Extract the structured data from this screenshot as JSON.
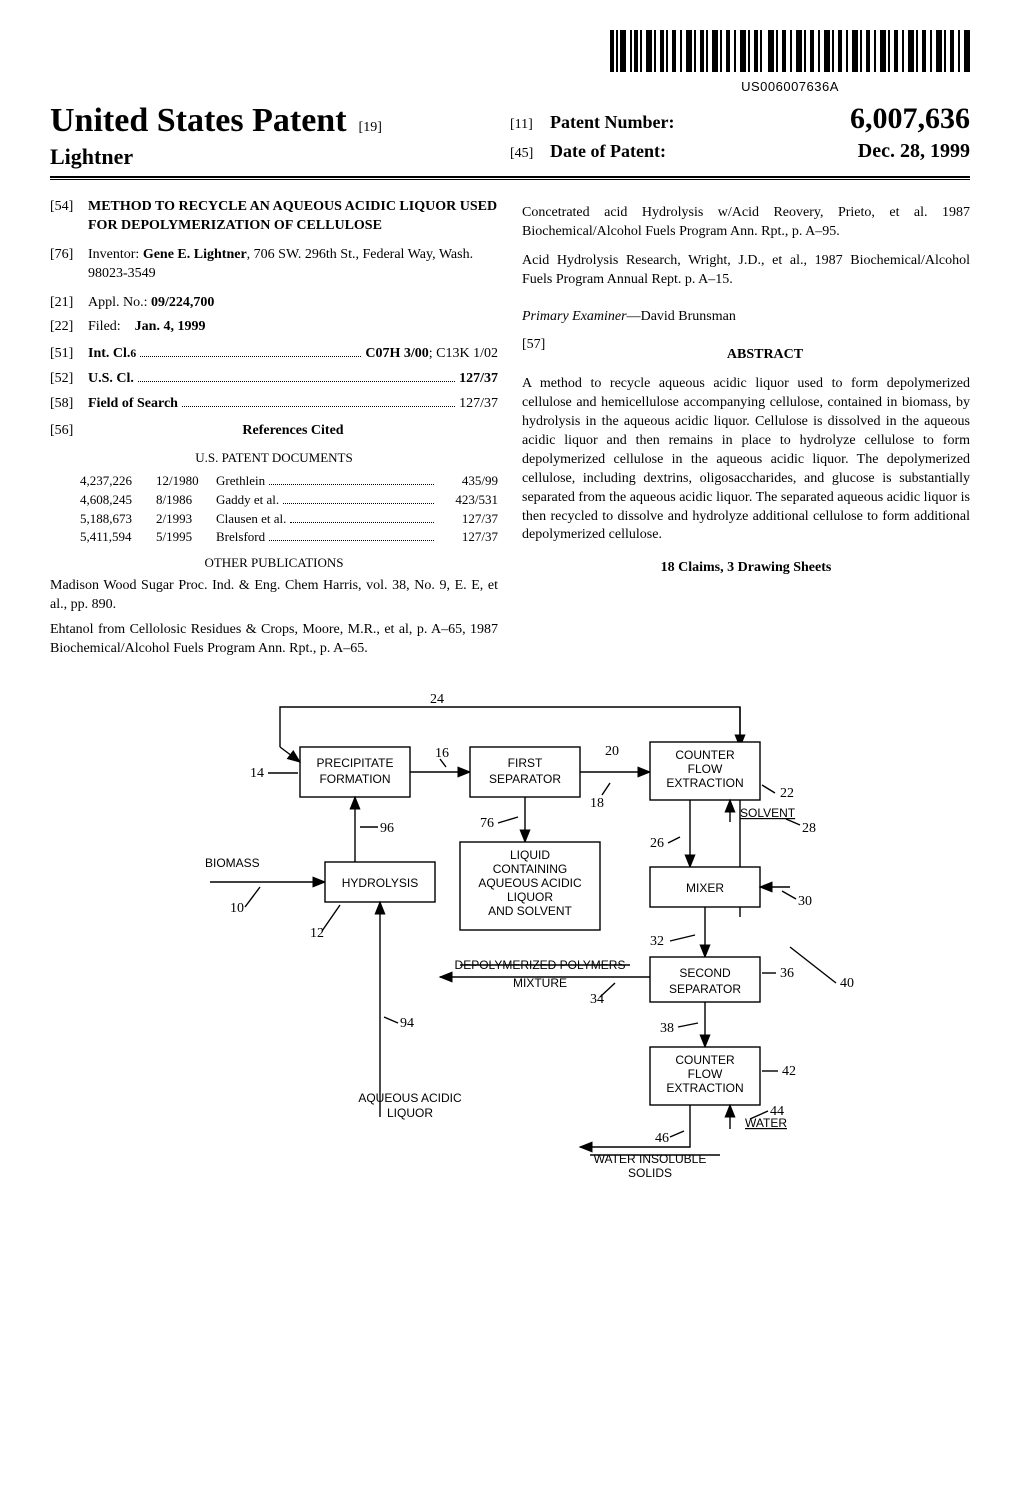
{
  "barcode_number": "US006007636A",
  "header": {
    "usp_title": "United States Patent",
    "usp_code": "[19]",
    "inventor_surname": "Lightner",
    "pn_code": "[11]",
    "pn_label": "Patent Number:",
    "pn_value": "6,007,636",
    "dp_code": "[45]",
    "dp_label": "Date of Patent:",
    "dp_value": "Dec. 28, 1999"
  },
  "fields": {
    "f54_code": "[54]",
    "f54_title": "METHOD TO RECYCLE AN AQUEOUS ACIDIC LIQUOR USED FOR DEPOLYMERIZATION OF CELLULOSE",
    "f76_code": "[76]",
    "f76_label": "Inventor:",
    "f76_value": "Gene E. Lightner, 706 SW. 296th St., Federal Way, Wash. 98023-3549",
    "f21_code": "[21]",
    "f21_label": "Appl. No.:",
    "f21_value": "09/224,700",
    "f22_code": "[22]",
    "f22_label": "Filed:",
    "f22_value": "Jan. 4, 1999",
    "f51_code": "[51]",
    "f51_label": "Int. Cl.",
    "f51_sup": "6",
    "f51_value": "C07H 3/00; C13K 1/02",
    "f52_code": "[52]",
    "f52_label": "U.S. Cl.",
    "f52_value": "127/37",
    "f58_code": "[58]",
    "f58_label": "Field of Search",
    "f58_value": "127/37",
    "f56_code": "[56]",
    "f56_label": "References Cited",
    "uspd_head": "U.S. PATENT DOCUMENTS",
    "refs": [
      {
        "num": "4,237,226",
        "date": "12/1980",
        "name": "Grethlein",
        "cls": "435/99"
      },
      {
        "num": "4,608,245",
        "date": "8/1986",
        "name": "Gaddy et al.",
        "cls": "423/531"
      },
      {
        "num": "5,188,673",
        "date": "2/1993",
        "name": "Clausen et al.",
        "cls": "127/37"
      },
      {
        "num": "5,411,594",
        "date": "5/1995",
        "name": "Brelsford",
        "cls": "127/37"
      }
    ],
    "otherpub_head": "OTHER PUBLICATIONS",
    "otherpub1": "Madison Wood Sugar Proc. Ind. & Eng. Chem Harris, vol. 38, No. 9, E. E, et al., pp. 890.",
    "otherpub2": "Ehtanol from Cellolosic Residues & Crops, Moore, M.R., et al, p. A–65, 1987 Biochemical/Alcohol Fuels Program Ann. Rpt., p. A–65."
  },
  "rightcol": {
    "otherpub3": "Concetrated acid Hydrolysis w/Acid Reovery, Prieto, et al. 1987 Biochemical/Alcohol Fuels Program Ann. Rpt., p. A–95.",
    "otherpub4": "Acid Hydrolysis Research, Wright, J.D., et al., 1987 Biochemical/Alcohol Fuels Program Annual Rept. p. A–15.",
    "examiner_label": "Primary Examiner",
    "examiner_value": "—David Brunsman",
    "f57_code": "[57]",
    "abstract_head": "ABSTRACT",
    "abstract_body": "A method to recycle aqueous acidic liquor used to form depolymerized cellulose and hemicellulose accompanying cellulose, contained in biomass, by hydrolysis in the aqueous acidic liquor. Cellulose is dissolved in the aqueous acidic liquor and then remains in place to hydrolyze cellulose to form depolymerized cellulose in the aqueous acidic liquor. The depolymerized cellulose, including dextrins, oligosaccharides, and glucose is substantially separated from the aqueous acidic liquor. The separated aqueous acidic liquor is then recycled to dissolve and hydrolyze additional cellulose to form additional depolymerized cellulose.",
    "claims_line": "18 Claims, 3 Drawing Sheets"
  },
  "diagram": {
    "nodes": {
      "precipitate": "PRECIPITATE\nFORMATION",
      "first_sep": "FIRST\nSEPARATOR",
      "cfe1": "COUNTER\nFLOW\nEXTRACTION",
      "hydrolysis": "HYDROLYSIS",
      "liquid_box": "LIQUID\nCONTAINING\nAQUEOUS ACIDIC\nLIQUOR\nAND SOLVENT",
      "mixer": "MIXER",
      "second_sep": "SECOND\nSEPARATOR",
      "cfe2": "COUNTER\nFLOW\nEXTRACTION"
    },
    "labels": {
      "biomass": "BIOMASS",
      "solvent": "SOLVENT",
      "water": "WATER",
      "depoly": "DEPOLYMERIZED  POLYMERS\nMIXTURE",
      "aal": "AQUEOUS  ACIDIC\nLIQUOR",
      "wis": "WATER INSOLUBLE\nSOLIDS"
    },
    "nums": {
      "n10": "10",
      "n12": "12",
      "n14": "14",
      "n16": "16",
      "n18": "18",
      "n20": "20",
      "n22": "22",
      "n24": "24",
      "n26": "26",
      "n28": "28",
      "n30": "30",
      "n32": "32",
      "n34": "34",
      "n36": "36",
      "n38": "38",
      "n40": "40",
      "n42": "42",
      "n44": "44",
      "n46": "46",
      "n76": "76",
      "n94": "94",
      "n96": "96"
    }
  }
}
